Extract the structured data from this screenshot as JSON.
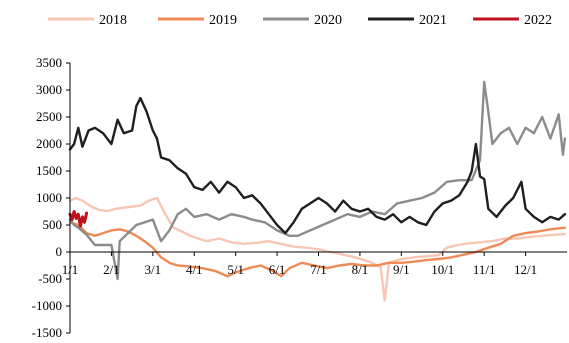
{
  "chart_data": {
    "type": "line",
    "title": "",
    "xlabel": "",
    "ylabel": "",
    "ylim": [
      -1500,
      3500
    ],
    "y_ticks": [
      "3500",
      "3000",
      "2500",
      "2000",
      "1500",
      "1000",
      "500",
      "0",
      "-500",
      "-1000",
      "-1500"
    ],
    "x_ticks": [
      "1/1",
      "2/1",
      "3/1",
      "4/1",
      "5/1",
      "6/1",
      "7/1",
      "8/1",
      "9/1",
      "10/1",
      "11/1",
      "12/1"
    ],
    "x_unit": "month (1 = Jan 1)",
    "xlim": [
      1,
      13
    ],
    "grid": false,
    "legend_position": "top",
    "series": [
      {
        "name": "2018",
        "color": "#f7c6b4",
        "points": [
          [
            1.0,
            950
          ],
          [
            1.15,
            1000
          ],
          [
            1.3,
            950
          ],
          [
            1.5,
            850
          ],
          [
            1.7,
            780
          ],
          [
            1.9,
            760
          ],
          [
            2.1,
            800
          ],
          [
            2.4,
            830
          ],
          [
            2.7,
            860
          ],
          [
            2.9,
            950
          ],
          [
            3.1,
            1000
          ],
          [
            3.3,
            700
          ],
          [
            3.5,
            450
          ],
          [
            3.7,
            380
          ],
          [
            3.9,
            300
          ],
          [
            4.1,
            250
          ],
          [
            4.3,
            200
          ],
          [
            4.6,
            250
          ],
          [
            4.9,
            180
          ],
          [
            5.2,
            150
          ],
          [
            5.5,
            170
          ],
          [
            5.8,
            200
          ],
          [
            6.1,
            150
          ],
          [
            6.4,
            100
          ],
          [
            6.7,
            80
          ],
          [
            7.0,
            50
          ],
          [
            7.3,
            0
          ],
          [
            7.6,
            -50
          ],
          [
            7.9,
            -100
          ],
          [
            8.1,
            -150
          ],
          [
            8.3,
            -200
          ],
          [
            8.5,
            -280
          ],
          [
            8.6,
            -900
          ],
          [
            8.7,
            -200
          ],
          [
            8.9,
            -150
          ],
          [
            9.1,
            -120
          ],
          [
            9.3,
            -100
          ],
          [
            9.6,
            -80
          ],
          [
            9.9,
            -60
          ],
          [
            10.1,
            80
          ],
          [
            10.3,
            120
          ],
          [
            10.6,
            160
          ],
          [
            10.9,
            180
          ],
          [
            11.2,
            200
          ],
          [
            11.5,
            250
          ],
          [
            11.8,
            250
          ],
          [
            12.1,
            280
          ],
          [
            12.4,
            300
          ],
          [
            12.7,
            320
          ],
          [
            12.95,
            330
          ]
        ]
      },
      {
        "name": "2019",
        "color": "#ee8a55",
        "points": [
          [
            1.0,
            550
          ],
          [
            1.2,
            500
          ],
          [
            1.4,
            350
          ],
          [
            1.6,
            300
          ],
          [
            1.8,
            350
          ],
          [
            2.0,
            400
          ],
          [
            2.2,
            420
          ],
          [
            2.4,
            380
          ],
          [
            2.6,
            300
          ],
          [
            2.8,
            200
          ],
          [
            3.0,
            80
          ],
          [
            3.2,
            -100
          ],
          [
            3.4,
            -200
          ],
          [
            3.6,
            -250
          ],
          [
            3.9,
            -270
          ],
          [
            4.2,
            -300
          ],
          [
            4.5,
            -350
          ],
          [
            4.8,
            -450
          ],
          [
            5.0,
            -380
          ],
          [
            5.3,
            -300
          ],
          [
            5.6,
            -250
          ],
          [
            5.9,
            -350
          ],
          [
            6.1,
            -450
          ],
          [
            6.3,
            -300
          ],
          [
            6.6,
            -200
          ],
          [
            6.9,
            -250
          ],
          [
            7.2,
            -300
          ],
          [
            7.5,
            -250
          ],
          [
            7.8,
            -220
          ],
          [
            8.1,
            -250
          ],
          [
            8.4,
            -250
          ],
          [
            8.7,
            -200
          ],
          [
            9.0,
            -200
          ],
          [
            9.3,
            -180
          ],
          [
            9.6,
            -150
          ],
          [
            9.9,
            -130
          ],
          [
            10.2,
            -100
          ],
          [
            10.5,
            -50
          ],
          [
            10.8,
            0
          ],
          [
            11.1,
            80
          ],
          [
            11.4,
            150
          ],
          [
            11.7,
            300
          ],
          [
            12.0,
            350
          ],
          [
            12.3,
            380
          ],
          [
            12.6,
            420
          ],
          [
            12.95,
            450
          ]
        ]
      },
      {
        "name": "2020",
        "color": "#8c8c8c",
        "points": [
          [
            1.0,
            600
          ],
          [
            1.1,
            500
          ],
          [
            1.2,
            450
          ],
          [
            1.4,
            320
          ],
          [
            1.6,
            130
          ],
          [
            1.8,
            130
          ],
          [
            2.0,
            130
          ],
          [
            2.15,
            -500
          ],
          [
            2.2,
            200
          ],
          [
            2.4,
            350
          ],
          [
            2.6,
            500
          ],
          [
            2.8,
            550
          ],
          [
            3.0,
            600
          ],
          [
            3.2,
            200
          ],
          [
            3.4,
            400
          ],
          [
            3.6,
            700
          ],
          [
            3.8,
            800
          ],
          [
            4.0,
            650
          ],
          [
            4.3,
            700
          ],
          [
            4.6,
            600
          ],
          [
            4.9,
            700
          ],
          [
            5.2,
            650
          ],
          [
            5.4,
            600
          ],
          [
            5.7,
            550
          ],
          [
            6.0,
            400
          ],
          [
            6.3,
            300
          ],
          [
            6.5,
            300
          ],
          [
            6.8,
            400
          ],
          [
            7.1,
            500
          ],
          [
            7.4,
            600
          ],
          [
            7.7,
            700
          ],
          [
            8.0,
            650
          ],
          [
            8.3,
            750
          ],
          [
            8.6,
            700
          ],
          [
            8.9,
            900
          ],
          [
            9.2,
            950
          ],
          [
            9.5,
            1000
          ],
          [
            9.8,
            1100
          ],
          [
            10.1,
            1300
          ],
          [
            10.4,
            1330
          ],
          [
            10.7,
            1330
          ],
          [
            10.9,
            1700
          ],
          [
            11.0,
            3150
          ],
          [
            11.1,
            2600
          ],
          [
            11.2,
            2000
          ],
          [
            11.4,
            2200
          ],
          [
            11.6,
            2300
          ],
          [
            11.8,
            2000
          ],
          [
            12.0,
            2300
          ],
          [
            12.2,
            2200
          ],
          [
            12.4,
            2500
          ],
          [
            12.6,
            2100
          ],
          [
            12.8,
            2550
          ],
          [
            12.9,
            1800
          ],
          [
            12.95,
            2100
          ]
        ]
      },
      {
        "name": "2021",
        "color": "#1f1f1f",
        "points": [
          [
            1.0,
            1900
          ],
          [
            1.1,
            2000
          ],
          [
            1.2,
            2300
          ],
          [
            1.3,
            1950
          ],
          [
            1.45,
            2250
          ],
          [
            1.6,
            2300
          ],
          [
            1.8,
            2200
          ],
          [
            2.0,
            2000
          ],
          [
            2.15,
            2450
          ],
          [
            2.3,
            2200
          ],
          [
            2.5,
            2250
          ],
          [
            2.6,
            2700
          ],
          [
            2.7,
            2850
          ],
          [
            2.85,
            2600
          ],
          [
            3.0,
            2250
          ],
          [
            3.1,
            2100
          ],
          [
            3.2,
            1750
          ],
          [
            3.4,
            1700
          ],
          [
            3.6,
            1550
          ],
          [
            3.8,
            1450
          ],
          [
            4.0,
            1200
          ],
          [
            4.2,
            1150
          ],
          [
            4.4,
            1300
          ],
          [
            4.6,
            1100
          ],
          [
            4.8,
            1300
          ],
          [
            5.0,
            1200
          ],
          [
            5.2,
            1000
          ],
          [
            5.4,
            1050
          ],
          [
            5.6,
            900
          ],
          [
            5.8,
            700
          ],
          [
            6.0,
            500
          ],
          [
            6.2,
            350
          ],
          [
            6.4,
            550
          ],
          [
            6.6,
            800
          ],
          [
            6.8,
            900
          ],
          [
            7.0,
            1000
          ],
          [
            7.2,
            900
          ],
          [
            7.4,
            750
          ],
          [
            7.6,
            950
          ],
          [
            7.8,
            800
          ],
          [
            8.0,
            750
          ],
          [
            8.2,
            800
          ],
          [
            8.4,
            650
          ],
          [
            8.6,
            600
          ],
          [
            8.8,
            700
          ],
          [
            9.0,
            550
          ],
          [
            9.2,
            650
          ],
          [
            9.4,
            550
          ],
          [
            9.6,
            500
          ],
          [
            9.8,
            750
          ],
          [
            10.0,
            900
          ],
          [
            10.2,
            950
          ],
          [
            10.4,
            1050
          ],
          [
            10.6,
            1300
          ],
          [
            10.7,
            1500
          ],
          [
            10.8,
            2000
          ],
          [
            10.9,
            1400
          ],
          [
            11.0,
            1350
          ],
          [
            11.1,
            800
          ],
          [
            11.3,
            650
          ],
          [
            11.5,
            850
          ],
          [
            11.7,
            1000
          ],
          [
            11.9,
            1300
          ],
          [
            12.0,
            800
          ],
          [
            12.2,
            650
          ],
          [
            12.4,
            550
          ],
          [
            12.6,
            650
          ],
          [
            12.8,
            600
          ],
          [
            12.95,
            700
          ]
        ]
      },
      {
        "name": "2022",
        "color": "#c0101d",
        "points": [
          [
            1.0,
            700
          ],
          [
            1.05,
            600
          ],
          [
            1.1,
            750
          ],
          [
            1.15,
            620
          ],
          [
            1.2,
            700
          ],
          [
            1.25,
            480
          ],
          [
            1.3,
            650
          ],
          [
            1.35,
            550
          ],
          [
            1.4,
            720
          ]
        ]
      }
    ]
  }
}
